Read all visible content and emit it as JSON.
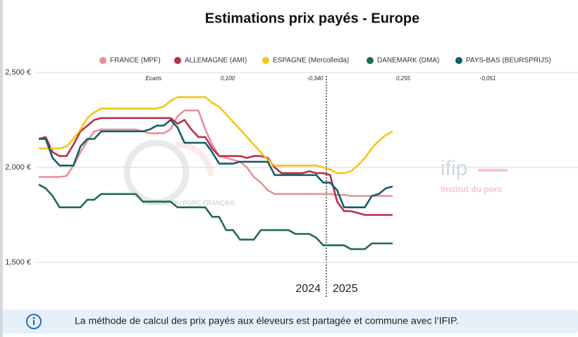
{
  "chart_data": {
    "type": "line",
    "title": "Estimations prix payés - Europe",
    "categories": [
      null,
      null,
      null,
      null,
      null,
      null,
      null,
      null,
      null,
      null,
      null,
      null,
      null,
      null,
      null,
      null,
      null,
      null,
      null,
      null,
      null,
      null,
      null,
      null,
      null,
      null,
      null,
      null,
      null,
      null,
      null,
      null,
      null,
      null,
      null,
      null,
      null,
      null,
      null,
      null,
      null,
      null,
      null,
      null,
      null,
      null,
      null,
      null,
      null,
      null,
      null,
      null
    ],
    "series": [
      {
        "name": "FRANCE (MPF)",
        "color": "#e8909a",
        "values": [
          1950,
          1950,
          1950,
          1950,
          1955,
          2010,
          2080,
          2140,
          2190,
          2200,
          2200,
          2200,
          2200,
          2200,
          2200,
          2190,
          2180,
          2180,
          2180,
          2200,
          2270,
          2300,
          2300,
          2300,
          2200,
          2120,
          2060,
          2050,
          2040,
          2030,
          2000,
          1950,
          1920,
          1880,
          1860,
          1860,
          1860,
          1860,
          1860,
          1860,
          1860,
          1860,
          1860,
          1855,
          1855,
          1850,
          1850,
          1850,
          1850,
          1850,
          1850,
          1850
        ]
      },
      {
        "name": "ALLEMAGNE (AMI)",
        "color": "#b8304a",
        "values": [
          2150,
          2160,
          2080,
          2060,
          2060,
          2120,
          2190,
          2220,
          2250,
          2260,
          2260,
          2260,
          2260,
          2260,
          2260,
          2260,
          2260,
          2260,
          2260,
          2260,
          2230,
          2250,
          2200,
          2160,
          2160,
          2100,
          2060,
          2060,
          2060,
          2060,
          2050,
          2060,
          2060,
          2050,
          2000,
          1970,
          1970,
          1970,
          1970,
          1980,
          1970,
          1970,
          1960,
          1820,
          1770,
          1770,
          1760,
          1750,
          1750,
          1750,
          1750,
          1750
        ]
      },
      {
        "name": "ESPAGNE (Mercolleida)",
        "color": "#f5c518",
        "values": [
          2100,
          2100,
          2100,
          2100,
          2110,
          2150,
          2200,
          2260,
          2290,
          2310,
          2310,
          2310,
          2310,
          2310,
          2310,
          2310,
          2310,
          2310,
          2320,
          2350,
          2370,
          2370,
          2370,
          2370,
          2370,
          2340,
          2320,
          2280,
          2240,
          2200,
          2160,
          2120,
          2080,
          2040,
          2010,
          2010,
          2010,
          2010,
          2010,
          2010,
          2010,
          2000,
          1990,
          1970,
          1970,
          1980,
          2010,
          2050,
          2100,
          2140,
          2170,
          2190
        ]
      },
      {
        "name": "DANEMARK (DMA)",
        "color": "#1f6b54",
        "values": [
          1910,
          1890,
          1850,
          1790,
          1790,
          1790,
          1790,
          1830,
          1830,
          1860,
          1860,
          1860,
          1860,
          1860,
          1860,
          1820,
          1820,
          1820,
          1820,
          1820,
          1790,
          1790,
          1790,
          1790,
          1790,
          1740,
          1740,
          1670,
          1670,
          1620,
          1620,
          1620,
          1670,
          1670,
          1670,
          1670,
          1670,
          1650,
          1650,
          1650,
          1630,
          1590,
          1590,
          1590,
          1590,
          1570,
          1570,
          1570,
          1600,
          1600,
          1600,
          1600
        ]
      },
      {
        "name": "PAYS-BAS (BEURSPRIJS)",
        "color": "#135e6b",
        "values": [
          2150,
          2150,
          2050,
          2010,
          2010,
          2010,
          2110,
          2150,
          2150,
          2190,
          2190,
          2190,
          2190,
          2190,
          2190,
          2190,
          2200,
          2220,
          2220,
          2250,
          2210,
          2130,
          2130,
          2130,
          2130,
          2080,
          2020,
          2020,
          2020,
          2030,
          2030,
          2030,
          2030,
          2030,
          1960,
          1960,
          1960,
          1960,
          1960,
          1960,
          1960,
          1920,
          1920,
          1880,
          1790,
          1790,
          1790,
          1790,
          1850,
          1860,
          1890,
          1900
        ]
      }
    ],
    "ylim": [
      1500,
      2500
    ],
    "yticks": [
      {
        "value": 1500,
        "label": "1,500 €"
      },
      {
        "value": 2000,
        "label": "2,000 €"
      },
      {
        "value": 2500,
        "label": "2,500 €"
      }
    ],
    "grid": true,
    "legend": "top",
    "ecarts": [
      "Ecarts",
      "0,100",
      "-0,340",
      "0,255",
      "-0,051"
    ],
    "periods": [
      "2024",
      "2025"
    ],
    "watermark": {
      "left": "MARCHE DU PORC FRANÇAIS",
      "brand": "ifip",
      "brand_sub": "Institut du porc"
    }
  },
  "banner": {
    "text": "La méthode de calcul des prix payés aux éleveurs est partagée et commune avec l’IFIP."
  }
}
